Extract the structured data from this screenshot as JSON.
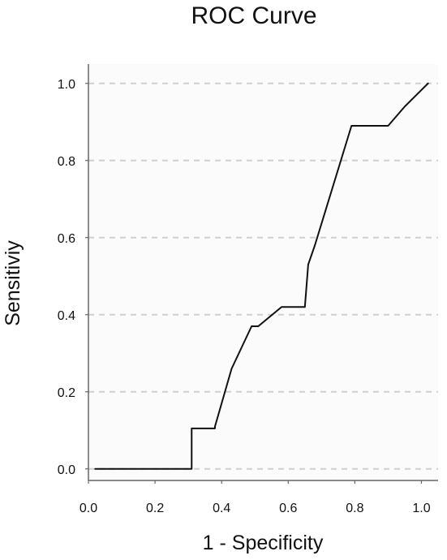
{
  "chart_data": {
    "type": "line",
    "title": "ROC Curve",
    "xlabel": "1 - Specificity",
    "ylabel": "Sensitiviy",
    "xlim": [
      0.0,
      1.05
    ],
    "ylim": [
      -0.03,
      1.05
    ],
    "x_ticks": [
      "0.0",
      "0.2",
      "0.4",
      "0.6",
      "0.8",
      "1.0"
    ],
    "y_ticks": [
      "0.0",
      "0.2",
      "0.4",
      "0.6",
      "0.8",
      "1.0"
    ],
    "grid": "horizontal-dashed",
    "series": [
      {
        "x": [
          0.02,
          0.31,
          0.31,
          0.31,
          0.38,
          0.38,
          0.43,
          0.49,
          0.51,
          0.58,
          0.65,
          0.66,
          0.68,
          0.79,
          0.79,
          0.9,
          0.95,
          1.02
        ],
        "y": [
          0.0,
          0.0,
          0.0,
          0.105,
          0.105,
          0.11,
          0.26,
          0.37,
          0.37,
          0.42,
          0.42,
          0.53,
          0.58,
          0.89,
          0.89,
          0.89,
          0.94,
          1.0
        ]
      }
    ],
    "colors": {
      "line": "#111111",
      "grid": "#cfcfcf",
      "axis": "#666666",
      "background": "#fbfbfb"
    }
  }
}
